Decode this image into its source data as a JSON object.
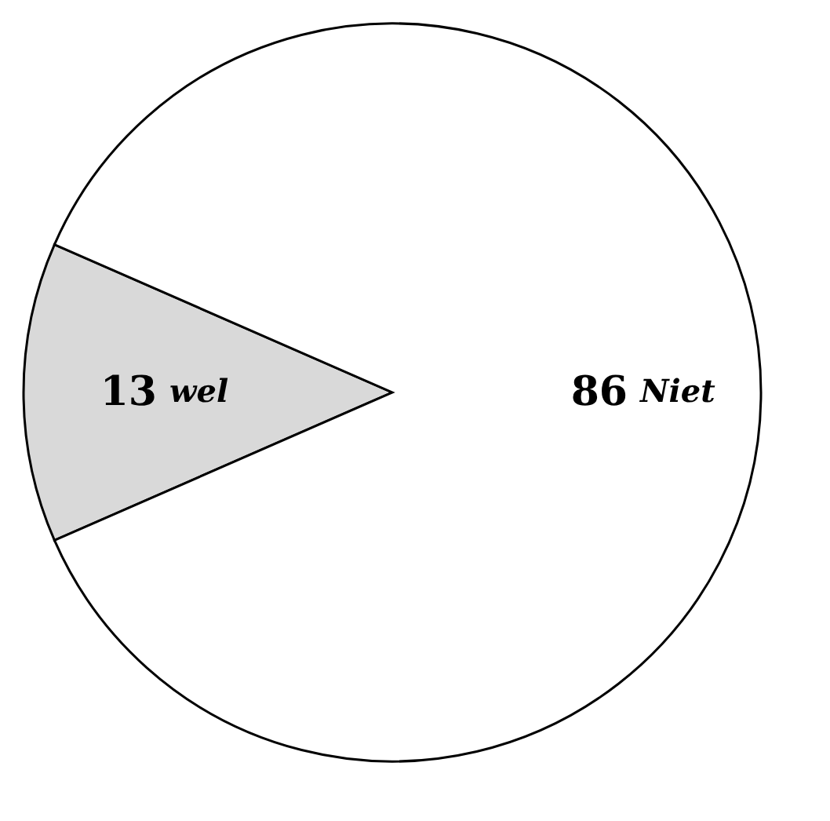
{
  "chart_data": {
    "type": "pie",
    "categories": [
      "wel",
      "Niet"
    ],
    "values": [
      13,
      86
    ],
    "colors": [
      "#d9d9d9",
      "#ffffff"
    ],
    "data_labels": true,
    "legend": false
  }
}
